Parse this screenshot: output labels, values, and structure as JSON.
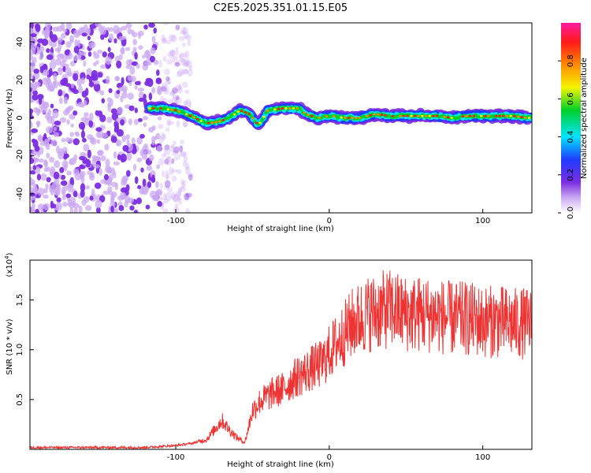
{
  "title": "C2E5.2025.351.01.15.E05",
  "chart_data": [
    {
      "type": "heatmap",
      "xlabel": "Height of straight line (km)",
      "ylabel": "Frequency (Hz)",
      "xlim": [
        -195,
        132
      ],
      "ylim": [
        -50,
        50
      ],
      "xticks": [
        -100,
        0,
        100
      ],
      "xtick_labels": [
        "-100",
        "0",
        "100"
      ],
      "yticks": [
        -40,
        -20,
        0,
        20,
        40
      ],
      "ytick_labels": [
        "-40",
        "-20",
        "0",
        "20",
        "40"
      ],
      "colorbar": {
        "label": "Normalized spectral amplitude",
        "range": [
          0,
          1
        ],
        "ticks": [
          0.0,
          0.2,
          0.4,
          0.6,
          0.8
        ],
        "tick_labels": [
          "0.0",
          "0.2",
          "0.4",
          "0.6",
          "0.8"
        ],
        "colormap": [
          "#ffffff",
          "#7b2ee0",
          "#1f3cff",
          "#00e5ff",
          "#00d02a",
          "#f5f500",
          "#ff8a00",
          "#ff1a1a",
          "#ff1aa0"
        ]
      },
      "noise_region_x": [
        -195,
        -90
      ],
      "noise_color": "#7b2ee0",
      "ridge": {
        "x": [
          -117,
          -110,
          -100,
          -90,
          -80,
          -72,
          -65,
          -58,
          -52,
          -46,
          -40,
          -30,
          -20,
          -15,
          -8,
          0,
          10,
          20,
          30,
          40,
          50,
          60,
          70,
          80,
          90,
          100,
          110,
          120,
          128
        ],
        "y": [
          5,
          5,
          4,
          1,
          -3,
          -2,
          0,
          4,
          2,
          -4,
          4,
          5,
          5,
          2,
          0,
          1,
          0,
          0,
          2,
          1,
          1,
          1,
          1,
          0,
          1,
          1,
          1,
          1,
          0
        ]
      },
      "grid": false
    },
    {
      "type": "line",
      "xlabel": "Height of straight line (km)",
      "ylabel": "SNR (10 * v/v)",
      "y_multiplier": "x10^4",
      "xlim": [
        -195,
        132
      ],
      "ylim": [
        0,
        1.9
      ],
      "xticks": [
        -100,
        0,
        100
      ],
      "xtick_labels": [
        "-100",
        "0",
        "100"
      ],
      "yticks": [
        0.5,
        1.0,
        1.5
      ],
      "ytick_labels": [
        "0.5",
        "1.0",
        "1.5"
      ],
      "line_color": "#ee3333",
      "series": [
        {
          "x": [
            -195,
            -150,
            -120,
            -100,
            -90,
            -80,
            -75,
            -70,
            -65,
            -60,
            -55,
            -50,
            -45,
            -40,
            -35,
            -30,
            -25,
            -20,
            -15,
            -10,
            -5,
            0,
            5,
            10,
            15,
            20,
            25,
            30,
            40,
            50,
            60,
            70,
            80,
            90,
            100,
            110,
            120,
            132
          ],
          "values": [
            0.02,
            0.02,
            0.02,
            0.04,
            0.06,
            0.1,
            0.2,
            0.3,
            0.2,
            0.12,
            0.07,
            0.4,
            0.5,
            0.55,
            0.6,
            0.62,
            0.7,
            0.76,
            0.8,
            0.85,
            0.88,
            1.0,
            1.1,
            1.2,
            1.3,
            1.35,
            1.4,
            1.42,
            1.45,
            1.4,
            1.4,
            1.38,
            1.35,
            1.35,
            1.32,
            1.32,
            1.3,
            1.3
          ]
        }
      ],
      "grid": false
    }
  ]
}
